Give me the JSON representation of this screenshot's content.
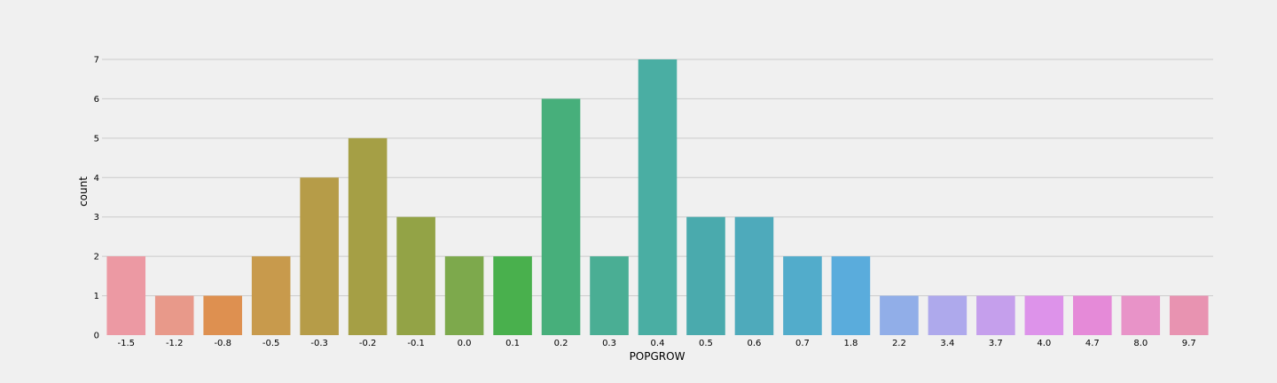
{
  "chart_data": {
    "type": "bar",
    "xlabel": "POPGROW",
    "ylabel": "count",
    "categories": [
      "-1.5",
      "-1.2",
      "-0.8",
      "-0.5",
      "-0.3",
      "-0.2",
      "-0.1",
      "0.0",
      "0.1",
      "0.2",
      "0.3",
      "0.4",
      "0.5",
      "0.6",
      "0.7",
      "1.8",
      "2.2",
      "3.4",
      "3.7",
      "4.0",
      "4.7",
      "8.0",
      "9.7"
    ],
    "values": [
      2,
      1,
      1,
      2,
      4,
      5,
      3,
      2,
      2,
      6,
      2,
      7,
      3,
      3,
      2,
      2,
      1,
      1,
      1,
      1,
      1,
      1,
      1
    ],
    "colors": [
      "#ec99a3",
      "#e8998a",
      "#de9050",
      "#c89a4c",
      "#b69c48",
      "#a59f45",
      "#93a346",
      "#7da94c",
      "#49b04d",
      "#47af7b",
      "#4aae94",
      "#4aaea3",
      "#4aaaad",
      "#4eaabb",
      "#52accb",
      "#5aacdc",
      "#91aee8",
      "#aea9ec",
      "#c59fec",
      "#dd93ea",
      "#e58ad8",
      "#e893c8",
      "#e893b1"
    ],
    "yticks": [
      0,
      1,
      2,
      3,
      4,
      5,
      6,
      7
    ],
    "ylim": [
      0,
      7.35
    ],
    "grid": true,
    "legend": "none"
  }
}
